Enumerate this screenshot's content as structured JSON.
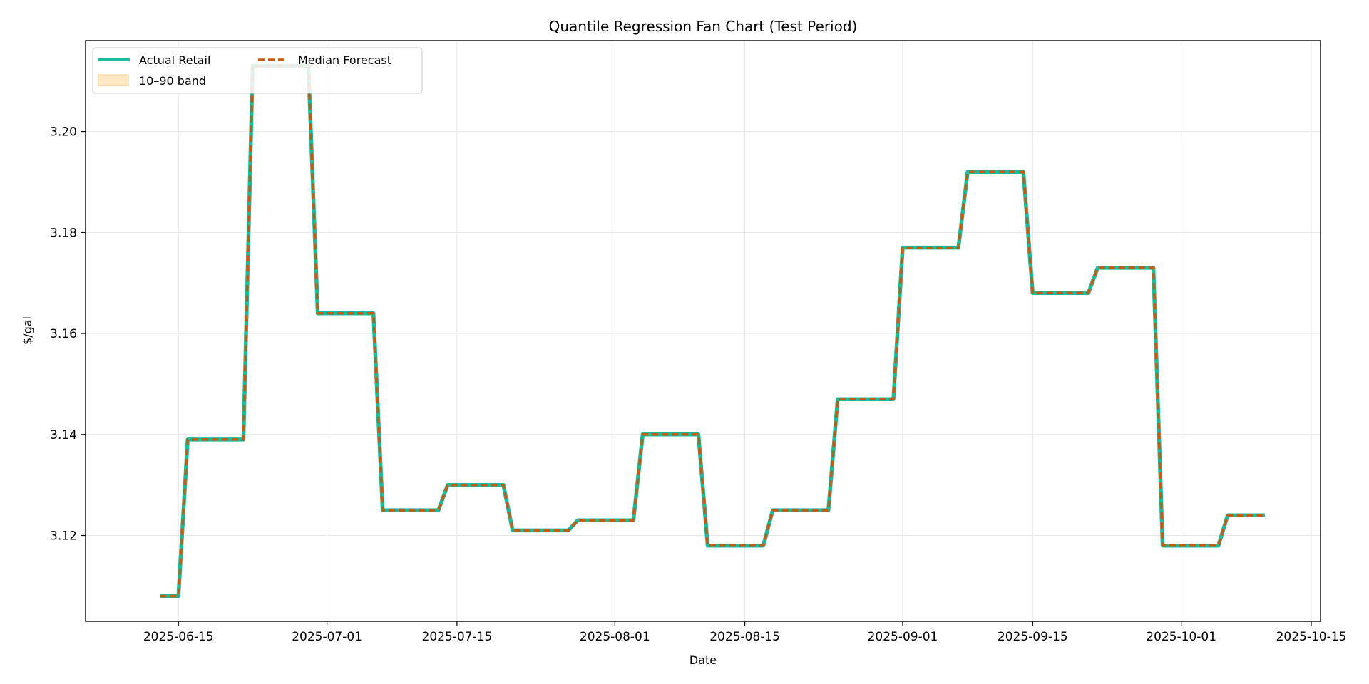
{
  "chart_data": {
    "type": "line",
    "title": "Quantile Regression Fan Chart (Test Period)",
    "xlabel": "Date",
    "ylabel": "$/gal",
    "xlim": [
      "2025-06-05",
      "2025-10-16"
    ],
    "ylim": [
      3.103,
      3.218
    ],
    "x_ticks": [
      "2025-06-15",
      "2025-07-01",
      "2025-07-15",
      "2025-08-01",
      "2025-08-15",
      "2025-09-01",
      "2025-09-15",
      "2025-10-01",
      "2025-10-15"
    ],
    "y_ticks": [
      "3.12",
      "3.14",
      "3.16",
      "3.18",
      "3.20"
    ],
    "grid": true,
    "legend_position": "top-left",
    "series": [
      {
        "name": "Actual Retail",
        "style": "solid",
        "color": "#1abc9c",
        "points": [
          [
            "2025-06-13",
            3.108
          ],
          [
            "2025-06-15",
            3.108
          ],
          [
            "2025-06-16",
            3.139
          ],
          [
            "2025-06-22",
            3.139
          ],
          [
            "2025-06-23",
            3.213
          ],
          [
            "2025-06-29",
            3.213
          ],
          [
            "2025-06-30",
            3.164
          ],
          [
            "2025-07-06",
            3.164
          ],
          [
            "2025-07-07",
            3.125
          ],
          [
            "2025-07-13",
            3.125
          ],
          [
            "2025-07-14",
            3.13
          ],
          [
            "2025-07-20",
            3.13
          ],
          [
            "2025-07-21",
            3.121
          ],
          [
            "2025-07-27",
            3.121
          ],
          [
            "2025-07-28",
            3.123
          ],
          [
            "2025-08-03",
            3.123
          ],
          [
            "2025-08-04",
            3.14
          ],
          [
            "2025-08-10",
            3.14
          ],
          [
            "2025-08-11",
            3.118
          ],
          [
            "2025-08-17",
            3.118
          ],
          [
            "2025-08-18",
            3.125
          ],
          [
            "2025-08-24",
            3.125
          ],
          [
            "2025-08-25",
            3.147
          ],
          [
            "2025-08-31",
            3.147
          ],
          [
            "2025-09-01",
            3.177
          ],
          [
            "2025-09-07",
            3.177
          ],
          [
            "2025-09-08",
            3.192
          ],
          [
            "2025-09-14",
            3.192
          ],
          [
            "2025-09-15",
            3.168
          ],
          [
            "2025-09-21",
            3.168
          ],
          [
            "2025-09-22",
            3.173
          ],
          [
            "2025-09-28",
            3.173
          ],
          [
            "2025-09-29",
            3.118
          ],
          [
            "2025-10-05",
            3.118
          ],
          [
            "2025-10-06",
            3.124
          ],
          [
            "2025-10-10",
            3.124
          ]
        ]
      },
      {
        "name": "Median Forecast",
        "style": "dashed",
        "color": "#c55a11",
        "same_as": "Actual Retail"
      }
    ],
    "bands": [
      {
        "name": "10–90 band",
        "color": "#ffe8c4"
      }
    ]
  }
}
